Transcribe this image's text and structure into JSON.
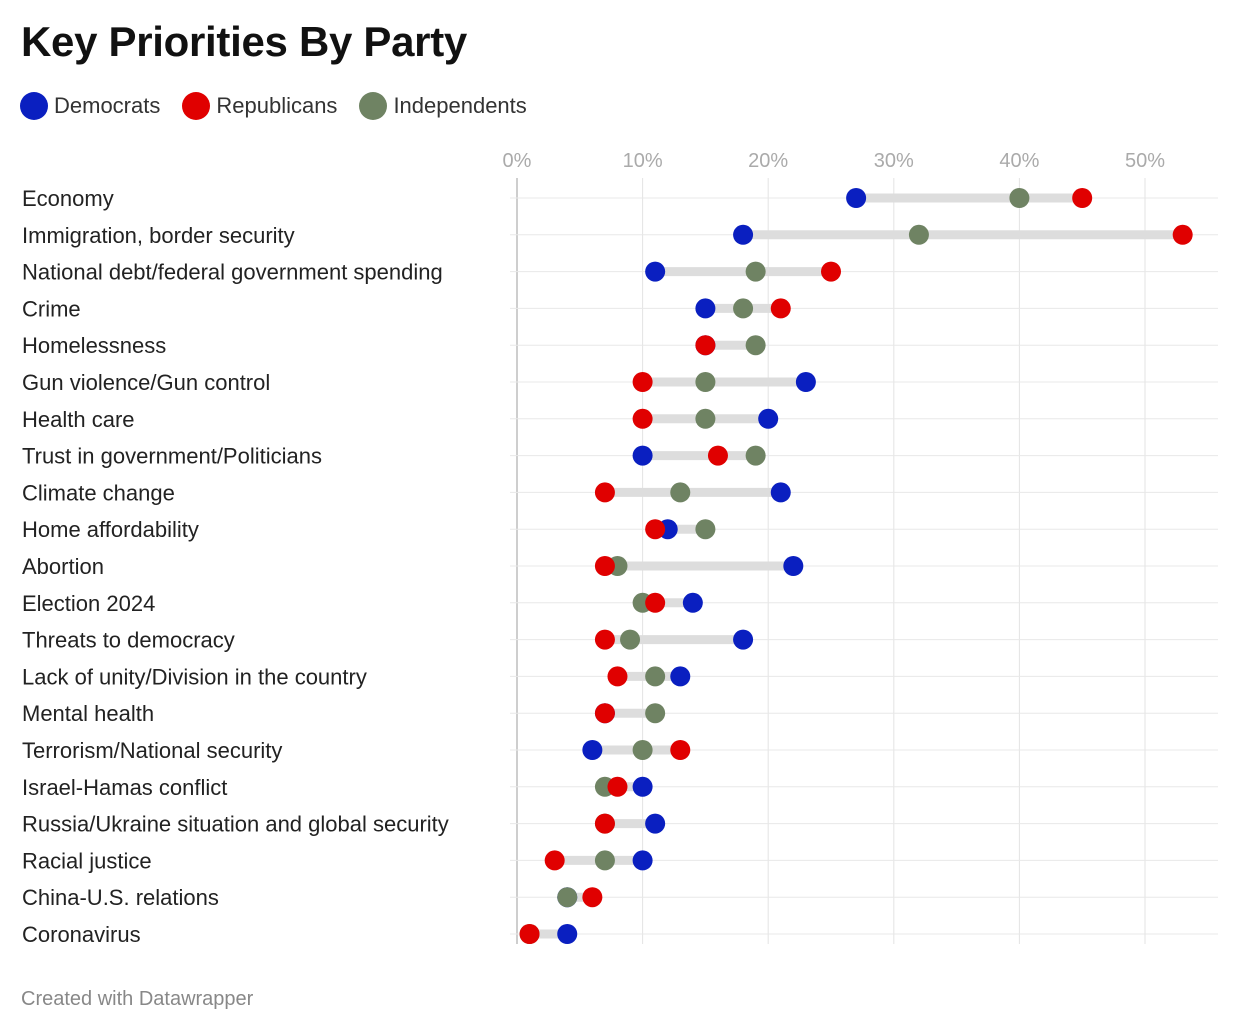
{
  "title": "Key Priorities By Party",
  "footer": "Created with Datawrapper",
  "legend": [
    {
      "name": "Democrats",
      "color": "#0a1fc0"
    },
    {
      "name": "Republicans",
      "color": "#e00000"
    },
    {
      "name": "Independents",
      "color": "#6f8363"
    }
  ],
  "chart_data": {
    "type": "dot-range",
    "title": "Key Priorities By Party",
    "xlim": [
      0,
      55
    ],
    "ticks": [
      0,
      10,
      20,
      30,
      40,
      50
    ],
    "tick_labels": [
      "0%",
      "10%",
      "20%",
      "30%",
      "40%",
      "50%"
    ],
    "legend_position": "top-left",
    "categories": [
      "Economy",
      "Immigration, border security",
      "National debt/federal government spending",
      "Crime",
      "Homelessness",
      "Gun violence/Gun control",
      "Health care",
      "Trust in government/Politicians",
      "Climate change",
      "Home affordability",
      "Abortion",
      "Election 2024",
      "Threats to democracy",
      "Lack of unity/Division in the country",
      "Mental health",
      "Terrorism/National security",
      "Israel-Hamas conflict",
      "Russia/Ukraine situation and global security",
      "Racial justice",
      "China-U.S. relations",
      "Coronavirus"
    ],
    "series": [
      {
        "name": "Democrats",
        "color": "#0a1fc0",
        "values": [
          27,
          18,
          11,
          15,
          15,
          23,
          20,
          10,
          21,
          12,
          22,
          14,
          18,
          13,
          7,
          6,
          10,
          11,
          10,
          4,
          4
        ]
      },
      {
        "name": "Republicans",
        "color": "#e00000",
        "values": [
          45,
          53,
          25,
          21,
          15,
          10,
          10,
          16,
          7,
          11,
          7,
          11,
          7,
          8,
          7,
          13,
          8,
          7,
          3,
          6,
          1
        ]
      },
      {
        "name": "Independents",
        "color": "#6f8363",
        "values": [
          40,
          32,
          19,
          18,
          19,
          15,
          15,
          19,
          13,
          15,
          8,
          10,
          9,
          11,
          11,
          10,
          7,
          7,
          7,
          4,
          1
        ]
      }
    ]
  }
}
